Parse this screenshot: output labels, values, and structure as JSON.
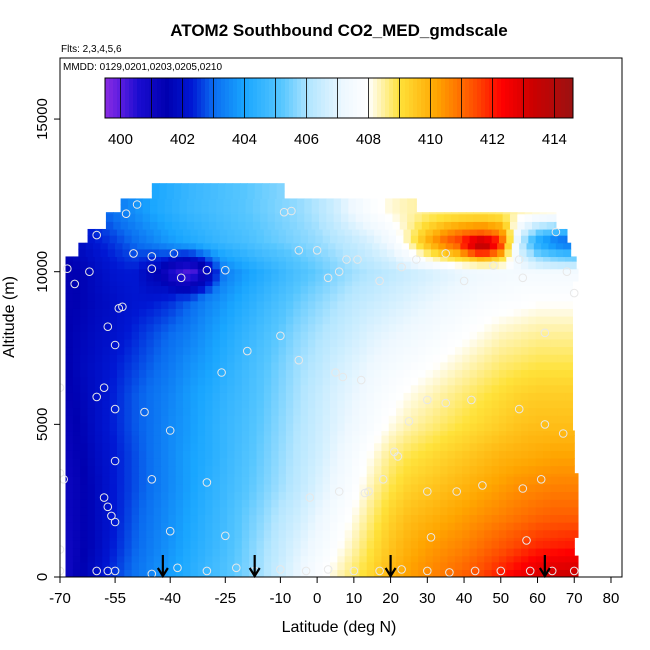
{
  "chart_data": {
    "type": "heatmap",
    "title": "ATOM2 Southbound CO2_MED_gmdscale",
    "flights_note": "Flts: 2,3,4,5,6",
    "dates_note": "MMDD: 0129,0201,0203,0205,0210",
    "xlabel": "Latitude (deg N)",
    "ylabel": "Altitude (m)",
    "xlim": [
      -70,
      83
    ],
    "ylim": [
      0,
      17000
    ],
    "x_ticks": [
      -70,
      -55,
      -40,
      -25,
      -10,
      0,
      10,
      20,
      30,
      40,
      50,
      60,
      70,
      80
    ],
    "x_tick_labels": [
      "-70",
      "-55",
      "-40",
      "-25",
      "-10",
      "0",
      "10",
      "20",
      "30",
      "40",
      "50",
      "60",
      "70",
      "80"
    ],
    "y_ticks": [
      0,
      5000,
      10000,
      15000
    ],
    "y_tick_labels": [
      "0",
      "5000",
      "10000",
      "15000"
    ],
    "colorbar": {
      "range": [
        399.5,
        414.6
      ],
      "ticks": [
        400,
        402,
        404,
        406,
        408,
        410,
        412,
        414
      ],
      "tick_labels": [
        "400",
        "402",
        "404",
        "406",
        "408",
        "410",
        "412",
        "414"
      ],
      "stops": [
        {
          "v": 399.5,
          "c": "#8a2be2"
        },
        {
          "v": 400.0,
          "c": "#5b1de0"
        },
        {
          "v": 400.6,
          "c": "#1a0ccf"
        },
        {
          "v": 401.5,
          "c": "#0000b0"
        },
        {
          "v": 402.3,
          "c": "#0018d4"
        },
        {
          "v": 403.0,
          "c": "#0a6cf0"
        },
        {
          "v": 404.0,
          "c": "#19a6ff"
        },
        {
          "v": 405.2,
          "c": "#56c6ff"
        },
        {
          "v": 406.1,
          "c": "#b4e6ff"
        },
        {
          "v": 407.2,
          "c": "#eef8ff"
        },
        {
          "v": 408.0,
          "c": "#ffffff"
        },
        {
          "v": 409.0,
          "c": "#ffe23a"
        },
        {
          "v": 410.2,
          "c": "#ffa500"
        },
        {
          "v": 411.5,
          "c": "#ff4800"
        },
        {
          "v": 412.3,
          "c": "#ff0000"
        },
        {
          "v": 413.3,
          "c": "#cc0000"
        },
        {
          "v": 414.6,
          "c": "#9b1212"
        }
      ]
    },
    "grid": false,
    "legend_position": "top (colorbar inside plot)",
    "field_profile": {
      "lat": [
        -68,
        -64,
        -60,
        -55,
        -50,
        -45,
        -40,
        -35,
        -30,
        -25,
        -20,
        -15,
        -10,
        -5,
        0,
        5,
        10,
        15,
        20,
        25,
        30,
        35,
        40,
        45,
        50,
        55,
        60,
        65,
        70
      ],
      "alt": [
        0,
        1000,
        2000,
        3000,
        4000,
        5000,
        6000,
        7000,
        8000,
        9000,
        10000,
        11000,
        12000
      ],
      "co2": [
        [
          401.0,
          401.6,
          402.0,
          402.6,
          403.1,
          403.5,
          403.9,
          404.3,
          404.7,
          405.1,
          405.5,
          406.0,
          406.6,
          407.2,
          407.8,
          408.3,
          408.8,
          409.3,
          409.9,
          410.3,
          410.6,
          410.9,
          411.2,
          411.6,
          412.1,
          412.6,
          413.1,
          413.3,
          413.4
        ],
        [
          401.0,
          401.4,
          401.8,
          402.4,
          402.9,
          403.3,
          403.7,
          404.1,
          404.5,
          404.9,
          405.4,
          405.9,
          406.4,
          406.9,
          407.4,
          407.9,
          408.4,
          409.0,
          409.6,
          410.0,
          410.3,
          410.5,
          410.7,
          411.0,
          411.3,
          411.6,
          411.9,
          412.0,
          412.1
        ],
        [
          401.1,
          401.4,
          401.8,
          402.3,
          402.8,
          403.2,
          403.6,
          404.0,
          404.4,
          404.8,
          405.3,
          405.7,
          406.2,
          406.6,
          407.1,
          407.6,
          408.1,
          408.7,
          409.3,
          409.7,
          409.9,
          410.1,
          410.3,
          410.5,
          410.7,
          410.9,
          411.1,
          411.2,
          411.2
        ],
        [
          401.1,
          401.4,
          401.8,
          402.3,
          402.7,
          403.1,
          403.5,
          403.9,
          404.3,
          404.7,
          405.1,
          405.5,
          405.9,
          406.3,
          406.8,
          407.3,
          407.8,
          408.4,
          408.9,
          409.3,
          409.5,
          409.7,
          409.9,
          410.1,
          410.3,
          410.5,
          410.6,
          410.7,
          410.7
        ],
        [
          401.2,
          401.5,
          401.9,
          402.3,
          402.7,
          403.1,
          403.5,
          403.9,
          404.2,
          404.6,
          405.0,
          405.4,
          405.8,
          406.2,
          406.6,
          407.1,
          407.6,
          408.1,
          408.6,
          408.9,
          409.1,
          409.3,
          409.5,
          409.7,
          409.9,
          410.0,
          410.1,
          410.2,
          410.2
        ],
        [
          401.3,
          401.6,
          402.0,
          402.4,
          402.8,
          403.1,
          403.5,
          403.8,
          404.2,
          404.6,
          404.9,
          405.3,
          405.7,
          406.1,
          406.5,
          406.9,
          407.3,
          407.7,
          408.1,
          408.4,
          408.6,
          408.8,
          409.0,
          409.2,
          409.4,
          409.6,
          409.7,
          409.7,
          409.7
        ],
        [
          401.4,
          401.7,
          402.0,
          402.4,
          402.8,
          403.1,
          403.4,
          403.8,
          404.1,
          404.5,
          404.8,
          405.2,
          405.6,
          406.0,
          406.4,
          406.8,
          407.1,
          407.5,
          407.8,
          408.1,
          408.3,
          408.5,
          408.7,
          408.9,
          409.1,
          409.3,
          409.4,
          409.4,
          409.4
        ],
        [
          401.5,
          401.8,
          402.0,
          402.3,
          402.6,
          402.9,
          403.2,
          403.6,
          403.9,
          404.3,
          404.7,
          405.1,
          405.5,
          405.9,
          406.2,
          406.6,
          406.9,
          407.2,
          407.5,
          407.7,
          407.9,
          408.1,
          408.3,
          408.5,
          408.7,
          408.8,
          408.9,
          408.9,
          408.9
        ],
        [
          401.5,
          401.7,
          401.9,
          402.1,
          402.4,
          402.7,
          403.0,
          403.3,
          403.7,
          404.1,
          404.5,
          404.9,
          405.3,
          405.7,
          406.0,
          406.3,
          406.6,
          406.9,
          407.1,
          407.3,
          407.5,
          407.7,
          407.9,
          408.1,
          408.3,
          408.4,
          408.5,
          408.5,
          408.5
        ],
        [
          401.4,
          401.6,
          401.8,
          402.0,
          402.2,
          402.3,
          402.5,
          402.9,
          403.4,
          403.8,
          404.2,
          404.6,
          405.0,
          405.4,
          405.7,
          406.0,
          406.3,
          406.5,
          406.7,
          406.9,
          407.1,
          407.3,
          407.5,
          407.7,
          407.8,
          407.9,
          408.0,
          408.0,
          408.0
        ],
        [
          401.4,
          401.6,
          401.9,
          402.2,
          402.3,
          401.6,
          401.3,
          401.8,
          402.6,
          403.3,
          403.8,
          404.2,
          404.6,
          405.0,
          405.3,
          405.6,
          405.9,
          406.1,
          406.3,
          406.5,
          406.7,
          406.9,
          407.1,
          407.3,
          407.4,
          407.5,
          407.5,
          407.5,
          407.5
        ],
        [
          401.8,
          402.0,
          402.3,
          402.6,
          403.0,
          403.4,
          403.8,
          404.1,
          404.4,
          404.7,
          404.9,
          405.2,
          405.4,
          405.6,
          405.8,
          406.1,
          406.4,
          406.8,
          407.4,
          408.5,
          410.0,
          411.2,
          412.0,
          412.4,
          411.5,
          406.5,
          404.0,
          403.0,
          402.6
        ],
        [
          402.2,
          402.5,
          402.8,
          403.2,
          403.6,
          404.0,
          404.3,
          404.6,
          404.8,
          405.0,
          405.2,
          405.4,
          405.6,
          405.8,
          406.1,
          406.6,
          407.3,
          407.8,
          408.2,
          408.4,
          408.5,
          408.5,
          408.5,
          408.5,
          408.5,
          408.5,
          408.5,
          408.5,
          408.5
        ]
      ]
    },
    "domain_bands": [
      {
        "alt": [
          0,
          700
        ],
        "lat": [
          -68.5,
          71.0
        ]
      },
      {
        "alt": [
          700,
          1300
        ],
        "lat": [
          -68.5,
          70.0
        ]
      },
      {
        "alt": [
          1300,
          3400
        ],
        "lat": [
          -68.5,
          71.0
        ]
      },
      {
        "alt": [
          3400,
          4800
        ],
        "lat": [
          -68.5,
          70.0
        ]
      },
      {
        "alt": [
          4800,
          9700
        ],
        "lat": [
          -68.5,
          69.5
        ]
      },
      {
        "alt": [
          9700,
          10100
        ],
        "lat": [
          -68.5,
          71.0
        ]
      },
      {
        "alt": [
          10100,
          10500
        ],
        "lat": [
          -68.5,
          70.5
        ]
      },
      {
        "alt": [
          10500,
          10950
        ],
        "lat": [
          -65.0,
          69.0
        ]
      },
      {
        "alt": [
          10950,
          11400
        ],
        "lat": [
          -62.5,
          68.0
        ]
      },
      {
        "alt": [
          11400,
          11950
        ],
        "lat": [
          -57.5,
          65.0
        ]
      },
      {
        "alt": [
          11950,
          12400
        ],
        "lat": [
          -53.5,
          27.0
        ]
      },
      {
        "alt": [
          12400,
          12900
        ],
        "lat": [
          -45.0,
          -9.0
        ]
      }
    ],
    "observation_points": [
      {
        "x": -68,
        "y": 10100
      },
      {
        "x": -66,
        "y": 9600
      },
      {
        "x": -62,
        "y": 10000
      },
      {
        "x": -57,
        "y": 8200
      },
      {
        "x": -55,
        "y": 7600
      },
      {
        "x": -54,
        "y": 8800
      },
      {
        "x": -53,
        "y": 8850
      },
      {
        "x": -60,
        "y": 11200
      },
      {
        "x": -52,
        "y": 11900
      },
      {
        "x": -49,
        "y": 12200
      },
      {
        "x": -50,
        "y": 10600
      },
      {
        "x": -45,
        "y": 10500
      },
      {
        "x": -39,
        "y": 10600
      },
      {
        "x": -45,
        "y": 10100
      },
      {
        "x": -37,
        "y": 9800
      },
      {
        "x": -30,
        "y": 10050
      },
      {
        "x": -25,
        "y": 10050
      },
      {
        "x": -19,
        "y": 7400
      },
      {
        "x": -9,
        "y": 11950
      },
      {
        "x": -7,
        "y": 11990
      },
      {
        "x": -5,
        "y": 10700
      },
      {
        "x": 0,
        "y": 10700
      },
      {
        "x": 3,
        "y": 9800
      },
      {
        "x": 6,
        "y": 10000
      },
      {
        "x": 8,
        "y": 10400
      },
      {
        "x": 11,
        "y": 10400
      },
      {
        "x": 17,
        "y": 9700
      },
      {
        "x": 23,
        "y": 10150
      },
      {
        "x": 27,
        "y": 10400
      },
      {
        "x": 35,
        "y": 10600
      },
      {
        "x": 40,
        "y": 9700
      },
      {
        "x": 48,
        "y": 10200
      },
      {
        "x": 55,
        "y": 10400
      },
      {
        "x": 56,
        "y": 9800
      },
      {
        "x": 65,
        "y": 11300
      },
      {
        "x": 68,
        "y": 10000
      },
      {
        "x": 70,
        "y": 9300
      },
      {
        "x": 62,
        "y": 8000
      },
      {
        "x": -70,
        "y": 6200
      },
      {
        "x": -60,
        "y": 5900
      },
      {
        "x": -58,
        "y": 6200
      },
      {
        "x": -55,
        "y": 5500
      },
      {
        "x": -47,
        "y": 5400
      },
      {
        "x": -40,
        "y": 4800
      },
      {
        "x": -26,
        "y": 6700
      },
      {
        "x": -10,
        "y": 7900
      },
      {
        "x": -5,
        "y": 7100
      },
      {
        "x": 5,
        "y": 6700
      },
      {
        "x": 7,
        "y": 6550
      },
      {
        "x": 12,
        "y": 6450
      },
      {
        "x": 25,
        "y": 5100
      },
      {
        "x": 30,
        "y": 5800
      },
      {
        "x": 35,
        "y": 5700
      },
      {
        "x": 42,
        "y": 5800
      },
      {
        "x": 55,
        "y": 5500
      },
      {
        "x": 62,
        "y": 5000
      },
      {
        "x": 67,
        "y": 4700
      },
      {
        "x": -70,
        "y": 3400
      },
      {
        "x": -69,
        "y": 3200
      },
      {
        "x": -58,
        "y": 2600
      },
      {
        "x": -57,
        "y": 2300
      },
      {
        "x": -56,
        "y": 2000
      },
      {
        "x": -55,
        "y": 1800
      },
      {
        "x": -55,
        "y": 3800
      },
      {
        "x": -45,
        "y": 3200
      },
      {
        "x": -30,
        "y": 3100
      },
      {
        "x": -40,
        "y": 1500
      },
      {
        "x": -25,
        "y": 1350
      },
      {
        "x": -2,
        "y": 2600
      },
      {
        "x": 6,
        "y": 2800
      },
      {
        "x": 13,
        "y": 2750
      },
      {
        "x": 14,
        "y": 2800
      },
      {
        "x": 18,
        "y": 3200
      },
      {
        "x": 21,
        "y": 4100
      },
      {
        "x": 22,
        "y": 3950
      },
      {
        "x": 31,
        "y": 1300
      },
      {
        "x": 30,
        "y": 2800
      },
      {
        "x": 38,
        "y": 2800
      },
      {
        "x": 45,
        "y": 3000
      },
      {
        "x": 56,
        "y": 2900
      },
      {
        "x": 61,
        "y": 3200
      },
      {
        "x": -70,
        "y": 900
      },
      {
        "x": -70,
        "y": 200
      },
      {
        "x": -60,
        "y": 200
      },
      {
        "x": -57,
        "y": 200
      },
      {
        "x": -55,
        "y": 200
      },
      {
        "x": -45,
        "y": 100
      },
      {
        "x": -38,
        "y": 300
      },
      {
        "x": -30,
        "y": 200
      },
      {
        "x": -22,
        "y": 300
      },
      {
        "x": -17,
        "y": 200
      },
      {
        "x": -10,
        "y": 250
      },
      {
        "x": -3,
        "y": 200
      },
      {
        "x": 3,
        "y": 250
      },
      {
        "x": 10,
        "y": 200
      },
      {
        "x": 17,
        "y": 200
      },
      {
        "x": 23,
        "y": 250
      },
      {
        "x": 30,
        "y": 200
      },
      {
        "x": 36,
        "y": 150
      },
      {
        "x": 43,
        "y": 200
      },
      {
        "x": 50,
        "y": 200
      },
      {
        "x": 57,
        "y": 1200
      },
      {
        "x": 58,
        "y": 200
      },
      {
        "x": 64,
        "y": 200
      },
      {
        "x": 70,
        "y": 200
      }
    ],
    "arrow_markers": [
      -42,
      -17,
      20,
      62
    ]
  }
}
